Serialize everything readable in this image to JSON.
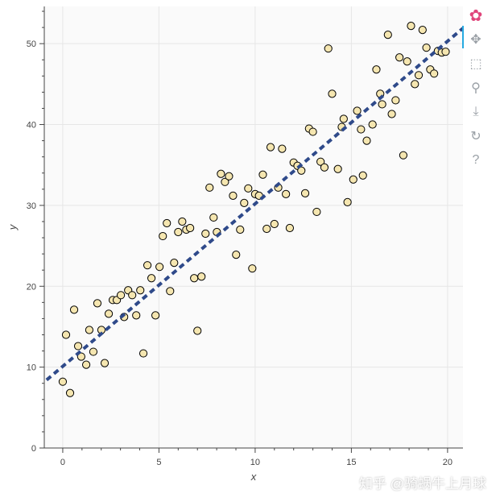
{
  "chart_data": {
    "type": "scatter",
    "xlabel": "x",
    "ylabel": "y",
    "xlim": [
      -0.96,
      20.8
    ],
    "ylim": [
      0,
      54.6
    ],
    "grid": true,
    "xticks": [
      0,
      5,
      10,
      15,
      20
    ],
    "yticks": [
      0,
      10,
      20,
      30,
      40,
      50
    ],
    "marker_fill": "#f5e6b0",
    "marker_edge": "#000000",
    "line_color": "#2f4a8a",
    "points": [
      [
        0,
        8.2
      ],
      [
        0.17,
        14.0
      ],
      [
        0.38,
        6.8
      ],
      [
        0.59,
        17.1
      ],
      [
        0.8,
        12.6
      ],
      [
        0.96,
        11.3
      ],
      [
        1.22,
        10.3
      ],
      [
        1.38,
        14.6
      ],
      [
        1.59,
        11.9
      ],
      [
        1.8,
        17.9
      ],
      [
        2.01,
        14.6
      ],
      [
        2.18,
        10.5
      ],
      [
        2.39,
        16.6
      ],
      [
        2.6,
        18.3
      ],
      [
        2.81,
        18.3
      ],
      [
        3.02,
        18.9
      ],
      [
        3.19,
        16.2
      ],
      [
        3.4,
        19.5
      ],
      [
        3.61,
        18.9
      ],
      [
        3.82,
        16.4
      ],
      [
        4.03,
        19.5
      ],
      [
        4.19,
        11.7
      ],
      [
        4.4,
        22.6
      ],
      [
        4.61,
        21.0
      ],
      [
        4.82,
        16.4
      ],
      [
        5.03,
        22.4
      ],
      [
        5.2,
        26.2
      ],
      [
        5.41,
        27.8
      ],
      [
        5.58,
        19.4
      ],
      [
        5.79,
        22.9
      ],
      [
        6.0,
        26.7
      ],
      [
        6.21,
        28.0
      ],
      [
        6.42,
        27.0
      ],
      [
        6.62,
        27.2
      ],
      [
        6.83,
        21.0
      ],
      [
        7.0,
        14.5
      ],
      [
        7.21,
        21.2
      ],
      [
        7.42,
        26.5
      ],
      [
        7.63,
        32.2
      ],
      [
        7.84,
        28.5
      ],
      [
        8.01,
        26.7
      ],
      [
        8.22,
        33.9
      ],
      [
        8.43,
        32.9
      ],
      [
        8.64,
        33.6
      ],
      [
        8.85,
        31.2
      ],
      [
        9.01,
        23.9
      ],
      [
        9.22,
        27.0
      ],
      [
        9.43,
        30.3
      ],
      [
        9.64,
        32.1
      ],
      [
        9.85,
        22.2
      ],
      [
        10.0,
        31.4
      ],
      [
        10.2,
        31.2
      ],
      [
        10.4,
        33.8
      ],
      [
        10.6,
        27.1
      ],
      [
        10.8,
        37.2
      ],
      [
        11.0,
        27.7
      ],
      [
        11.2,
        32.2
      ],
      [
        11.4,
        37.0
      ],
      [
        11.6,
        31.4
      ],
      [
        11.8,
        27.2
      ],
      [
        12.0,
        35.3
      ],
      [
        12.2,
        34.9
      ],
      [
        12.4,
        34.3
      ],
      [
        12.6,
        31.5
      ],
      [
        12.8,
        39.5
      ],
      [
        13.0,
        39.1
      ],
      [
        13.2,
        29.2
      ],
      [
        13.4,
        35.4
      ],
      [
        13.6,
        34.7
      ],
      [
        13.8,
        49.4
      ],
      [
        14.0,
        43.8
      ],
      [
        14.3,
        34.5
      ],
      [
        14.5,
        39.7
      ],
      [
        14.6,
        40.7
      ],
      [
        14.8,
        30.4
      ],
      [
        15.1,
        33.2
      ],
      [
        15.3,
        41.7
      ],
      [
        15.5,
        39.4
      ],
      [
        15.6,
        33.7
      ],
      [
        15.8,
        38.0
      ],
      [
        16.1,
        40.0
      ],
      [
        16.3,
        46.8
      ],
      [
        16.5,
        43.8
      ],
      [
        16.6,
        42.5
      ],
      [
        16.9,
        51.1
      ],
      [
        17.1,
        41.3
      ],
      [
        17.3,
        43.0
      ],
      [
        17.5,
        48.3
      ],
      [
        17.7,
        36.2
      ],
      [
        17.9,
        47.8
      ],
      [
        18.1,
        52.2
      ],
      [
        18.3,
        45.0
      ],
      [
        18.5,
        46.1
      ],
      [
        18.7,
        51.7
      ],
      [
        18.9,
        49.5
      ],
      [
        19.1,
        46.8
      ],
      [
        19.3,
        46.3
      ],
      [
        19.5,
        49.1
      ],
      [
        19.7,
        48.9
      ],
      [
        19.9,
        49.0
      ]
    ],
    "fit_line": {
      "slope": 2.01,
      "intercept": 10.1,
      "style": "dashed"
    }
  },
  "toolbar": {
    "tools": [
      {
        "name": "bokeh-logo",
        "glyph": "✿"
      },
      {
        "name": "pan-tool",
        "glyph": "✥"
      },
      {
        "name": "box-zoom-tool",
        "glyph": "⬚"
      },
      {
        "name": "wheel-zoom-tool",
        "glyph": "⚲"
      },
      {
        "name": "save-tool",
        "glyph": "⤓"
      },
      {
        "name": "reset-tool",
        "glyph": "↻"
      },
      {
        "name": "help-tool",
        "glyph": "?"
      }
    ]
  },
  "watermark": "知乎 @骑蜗牛上月球"
}
